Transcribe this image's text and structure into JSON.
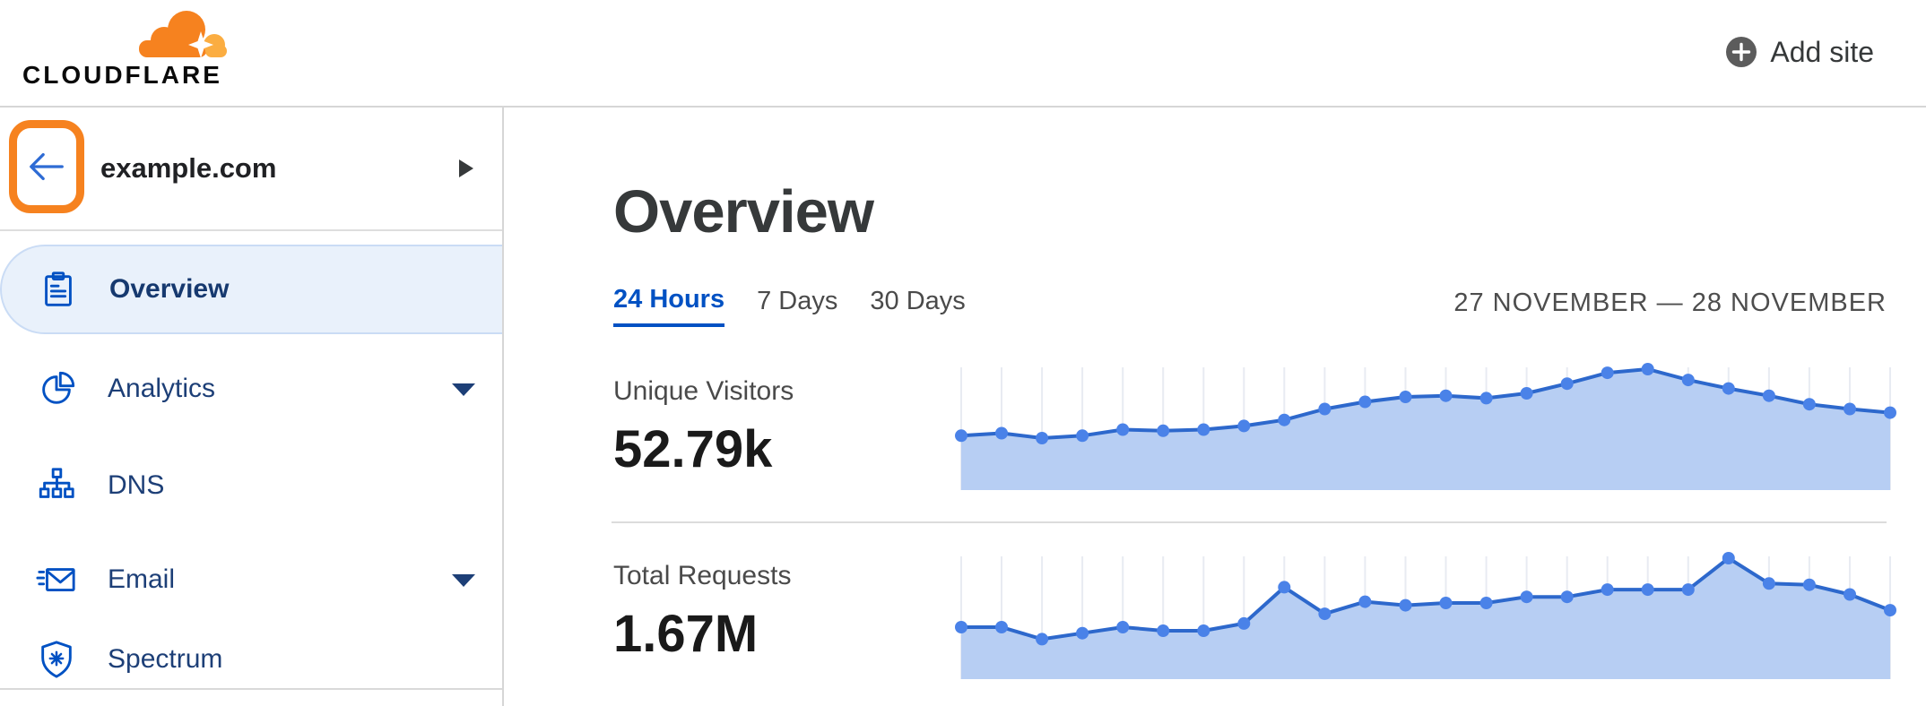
{
  "header": {
    "brand": "CLOUDFLARE",
    "add_site_label": "Add site"
  },
  "sidebar": {
    "site_name": "example.com",
    "items": [
      {
        "label": "Overview",
        "icon": "clipboard-icon",
        "selected": true,
        "expandable": false
      },
      {
        "label": "Analytics",
        "icon": "pie-chart-icon",
        "selected": false,
        "expandable": true
      },
      {
        "label": "DNS",
        "icon": "hierarchy-icon",
        "selected": false,
        "expandable": false
      },
      {
        "label": "Email",
        "icon": "envelope-icon",
        "selected": false,
        "expandable": true
      },
      {
        "label": "Spectrum",
        "icon": "shield-icon",
        "selected": false,
        "expandable": false
      }
    ]
  },
  "main": {
    "title": "Overview",
    "tabs": [
      {
        "label": "24 Hours",
        "active": true
      },
      {
        "label": "7 Days",
        "active": false
      },
      {
        "label": "30 Days",
        "active": false
      }
    ],
    "date_range": "27 NOVEMBER — 28 NOVEMBER",
    "metrics": [
      {
        "label": "Unique Visitors",
        "value": "52.79k"
      },
      {
        "label": "Total Requests",
        "value": "1.67M"
      }
    ]
  },
  "colors": {
    "brand_orange": "#f6821f",
    "brand_orange_light": "#fbad41",
    "highlight_orange": "#f6821f",
    "link_blue": "#0051c3",
    "nav_text": "#1d3f77",
    "selected_bg": "#e9f1fb",
    "selected_border": "#cadcf5",
    "chart_line": "#2d68cc",
    "chart_fill": "#b7cef3",
    "chart_dot": "#4a82e8",
    "chart_grid": "#e8ebf2",
    "divider": "#d9d9d9",
    "text_dark": "#36393a",
    "text_gray": "#4a4a4a"
  },
  "chart_data": [
    {
      "type": "area",
      "title": "Unique Visitors",
      "value_display": "52.79k",
      "x_label": "24 hourly points (unlabeled on axis)",
      "x": [
        1,
        2,
        3,
        4,
        5,
        6,
        7,
        8,
        9,
        10,
        11,
        12,
        13,
        14,
        15,
        16,
        17,
        18,
        19,
        20,
        21,
        22,
        23,
        24
      ],
      "values": [
        45,
        47,
        43,
        45,
        50,
        49,
        50,
        53,
        58,
        67,
        73,
        77,
        78,
        76,
        80,
        88,
        97,
        100,
        91,
        84,
        78,
        71,
        67,
        64
      ],
      "ylim": [
        0,
        100
      ],
      "unit": "relative (no y-axis shown; normalized to peak = 100)",
      "grid": "vertical gridline at each point",
      "legend": "none"
    },
    {
      "type": "area",
      "title": "Total Requests",
      "value_display": "1.67M",
      "x_label": "24 hourly points (unlabeled on axis)",
      "x": [
        1,
        2,
        3,
        4,
        5,
        6,
        7,
        8,
        9,
        10,
        11,
        12,
        13,
        14,
        15,
        16,
        17,
        18,
        19,
        20,
        21,
        22,
        23,
        24
      ],
      "values": [
        43,
        43,
        33,
        38,
        43,
        40,
        40,
        46,
        76,
        54,
        64,
        61,
        63,
        63,
        68,
        68,
        74,
        74,
        74,
        100,
        79,
        78,
        70,
        57
      ],
      "ylim": [
        0,
        100
      ],
      "unit": "relative (no y-axis shown; normalized to peak = 100)",
      "grid": "vertical gridline at each point",
      "legend": "none"
    }
  ]
}
